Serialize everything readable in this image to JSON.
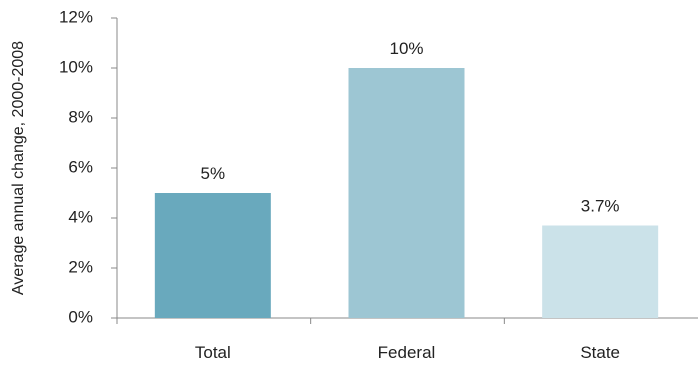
{
  "chart_data": {
    "type": "bar",
    "title": "",
    "xlabel": "",
    "ylabel": "Average annual change, 2000-2008",
    "categories": [
      "Total",
      "Federal",
      "State"
    ],
    "values": [
      5,
      10,
      3.7
    ],
    "data_labels": [
      "5%",
      "10%",
      "3.7%"
    ],
    "ylim": [
      0,
      12
    ],
    "yticks": [
      0,
      2,
      4,
      6,
      8,
      10,
      12
    ],
    "ytick_labels": [
      "0%",
      "2%",
      "4%",
      "6%",
      "8%",
      "10%",
      "12%"
    ],
    "bar_colors": [
      "#69a9bd",
      "#9dc6d3",
      "#cbe2e9"
    ],
    "axis_color": "#888888",
    "grid": false,
    "legend": "none"
  }
}
